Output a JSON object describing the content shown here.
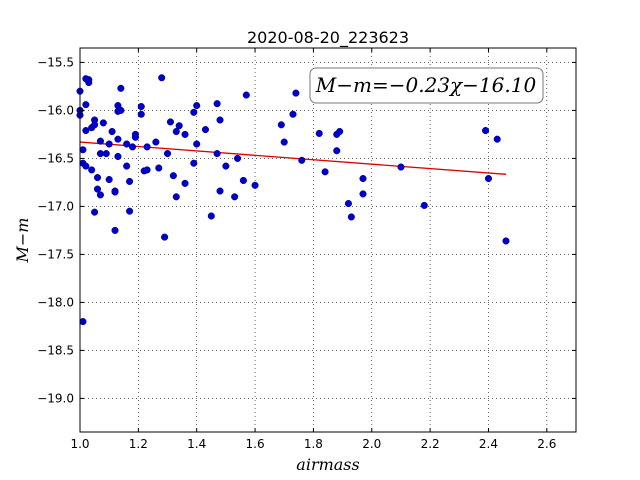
{
  "chart_data": {
    "type": "scatter",
    "title": "2020-08-20_223623",
    "xlabel": "airmass",
    "ylabel": "M−m",
    "xlim": [
      1.0,
      2.7
    ],
    "ylim": [
      -19.35,
      -15.35
    ],
    "y_inverted": true,
    "grid": true,
    "xticks": [
      1.0,
      1.2,
      1.4,
      1.6,
      1.8,
      2.0,
      2.2,
      2.4,
      2.6
    ],
    "xtick_labels": [
      "1.0",
      "1.2",
      "1.4",
      "1.6",
      "1.8",
      "2.0",
      "2.2",
      "2.4",
      "2.6"
    ],
    "yticks": [
      -15.5,
      -16.0,
      -16.5,
      -17.0,
      -17.5,
      -18.0,
      -18.5,
      -19.0
    ],
    "ytick_labels": [
      "−15.5",
      "−16.0",
      "−16.5",
      "−17.0",
      "−17.5",
      "−18.0",
      "−18.5",
      "−19.0"
    ],
    "annotation": "M−m=−0.23χ−16.10",
    "colors": {
      "points": "#0000cc",
      "fit": "#dd0000"
    },
    "fit": {
      "slope": -0.23,
      "intercept": -16.1,
      "x_range": [
        1.0,
        2.46
      ]
    },
    "points": [
      [
        1.0,
        -15.8
      ],
      [
        1.0,
        -16.0
      ],
      [
        1.0,
        -16.05
      ],
      [
        1.01,
        -16.41
      ],
      [
        1.01,
        -16.55
      ],
      [
        1.01,
        -18.2
      ],
      [
        1.02,
        -15.67
      ],
      [
        1.02,
        -15.94
      ],
      [
        1.02,
        -16.21
      ],
      [
        1.02,
        -16.58
      ],
      [
        1.03,
        -15.68
      ],
      [
        1.03,
        -15.71
      ],
      [
        1.04,
        -16.18
      ],
      [
        1.04,
        -16.62
      ],
      [
        1.05,
        -16.1
      ],
      [
        1.05,
        -16.15
      ],
      [
        1.05,
        -17.06
      ],
      [
        1.06,
        -16.7
      ],
      [
        1.06,
        -16.82
      ],
      [
        1.07,
        -16.32
      ],
      [
        1.07,
        -16.45
      ],
      [
        1.07,
        -16.88
      ],
      [
        1.08,
        -16.13
      ],
      [
        1.09,
        -16.45
      ],
      [
        1.1,
        -16.35
      ],
      [
        1.1,
        -16.72
      ],
      [
        1.11,
        -16.22
      ],
      [
        1.12,
        -16.84
      ],
      [
        1.12,
        -16.85
      ],
      [
        1.12,
        -17.25
      ],
      [
        1.13,
        -15.95
      ],
      [
        1.13,
        -16.01
      ],
      [
        1.13,
        -16.3
      ],
      [
        1.13,
        -16.48
      ],
      [
        1.14,
        -15.77
      ],
      [
        1.14,
        -16.0
      ],
      [
        1.16,
        -16.35
      ],
      [
        1.16,
        -16.58
      ],
      [
        1.17,
        -17.05
      ],
      [
        1.17,
        -16.74
      ],
      [
        1.18,
        -16.38
      ],
      [
        1.19,
        -16.25
      ],
      [
        1.19,
        -16.28
      ],
      [
        1.21,
        -15.96
      ],
      [
        1.21,
        -16.04
      ],
      [
        1.22,
        -16.63
      ],
      [
        1.23,
        -16.62
      ],
      [
        1.23,
        -16.38
      ],
      [
        1.26,
        -16.33
      ],
      [
        1.27,
        -16.6
      ],
      [
        1.28,
        -15.66
      ],
      [
        1.29,
        -17.32
      ],
      [
        1.3,
        -16.45
      ],
      [
        1.31,
        -16.12
      ],
      [
        1.32,
        -16.68
      ],
      [
        1.33,
        -16.22
      ],
      [
        1.33,
        -16.9
      ],
      [
        1.34,
        -16.16
      ],
      [
        1.36,
        -16.25
      ],
      [
        1.36,
        -16.76
      ],
      [
        1.39,
        -16.02
      ],
      [
        1.39,
        -16.55
      ],
      [
        1.4,
        -16.35
      ],
      [
        1.4,
        -15.95
      ],
      [
        1.43,
        -16.2
      ],
      [
        1.45,
        -17.1
      ],
      [
        1.47,
        -15.93
      ],
      [
        1.47,
        -16.45
      ],
      [
        1.48,
        -16.1
      ],
      [
        1.48,
        -16.84
      ],
      [
        1.5,
        -16.58
      ],
      [
        1.53,
        -16.9
      ],
      [
        1.54,
        -16.5
      ],
      [
        1.56,
        -16.73
      ],
      [
        1.57,
        -15.84
      ],
      [
        1.6,
        -16.78
      ],
      [
        1.69,
        -16.15
      ],
      [
        1.7,
        -16.33
      ],
      [
        1.73,
        -16.04
      ],
      [
        1.74,
        -15.82
      ],
      [
        1.76,
        -16.52
      ],
      [
        1.82,
        -16.24
      ],
      [
        1.84,
        -16.64
      ],
      [
        1.88,
        -16.42
      ],
      [
        1.88,
        -16.25
      ],
      [
        1.89,
        -16.22
      ],
      [
        1.92,
        -16.97
      ],
      [
        1.93,
        -17.11
      ],
      [
        1.97,
        -16.87
      ],
      [
        1.97,
        -16.71
      ],
      [
        2.1,
        -16.59
      ],
      [
        2.18,
        -16.99
      ],
      [
        2.39,
        -16.21
      ],
      [
        2.4,
        -16.71
      ],
      [
        2.43,
        -16.3
      ],
      [
        2.46,
        -17.36
      ]
    ]
  }
}
